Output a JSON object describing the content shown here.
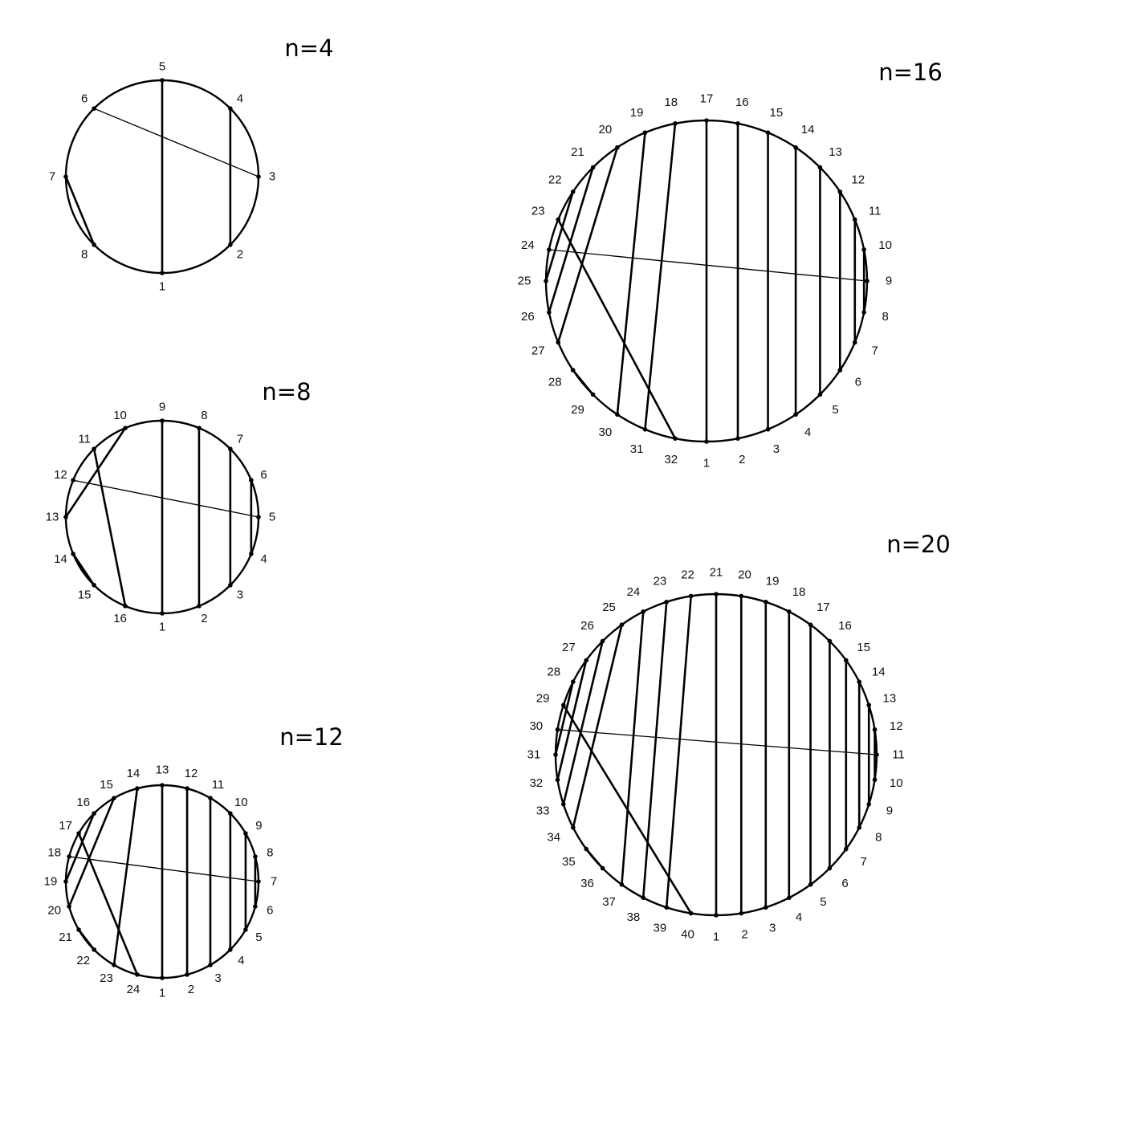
{
  "diagrams": [
    {
      "id": "n4",
      "title": "n=4",
      "point_count": 8,
      "chords": [
        [
          1,
          5,
          "thick"
        ],
        [
          2,
          4,
          "thick"
        ],
        [
          3,
          6,
          "thin"
        ],
        [
          7,
          8,
          "thick"
        ]
      ]
    },
    {
      "id": "n8",
      "title": "n=8",
      "point_count": 16,
      "chords": [
        [
          1,
          9,
          "thick"
        ],
        [
          2,
          8,
          "thick"
        ],
        [
          3,
          7,
          "thick"
        ],
        [
          4,
          6,
          "thick"
        ],
        [
          5,
          12,
          "thin"
        ],
        [
          10,
          13,
          "thick"
        ],
        [
          11,
          16,
          "thick"
        ],
        [
          14,
          15,
          "thick"
        ]
      ]
    },
    {
      "id": "n12",
      "title": "n=12",
      "point_count": 24,
      "chords": [
        [
          1,
          13,
          "thick"
        ],
        [
          2,
          12,
          "thick"
        ],
        [
          3,
          11,
          "thick"
        ],
        [
          4,
          10,
          "thick"
        ],
        [
          5,
          9,
          "thick"
        ],
        [
          6,
          8,
          "thick"
        ],
        [
          7,
          18,
          "thin"
        ],
        [
          14,
          23,
          "thick"
        ],
        [
          15,
          20,
          "thick"
        ],
        [
          16,
          19,
          "thick"
        ],
        [
          17,
          24,
          "thick"
        ],
        [
          21,
          22,
          "thick"
        ]
      ]
    },
    {
      "id": "n16",
      "title": "n=16",
      "point_count": 32,
      "chords": [
        [
          1,
          17,
          "thick"
        ],
        [
          2,
          16,
          "thick"
        ],
        [
          3,
          15,
          "thick"
        ],
        [
          4,
          14,
          "thick"
        ],
        [
          5,
          13,
          "thick"
        ],
        [
          6,
          12,
          "thick"
        ],
        [
          7,
          11,
          "thick"
        ],
        [
          8,
          10,
          "thick"
        ],
        [
          9,
          24,
          "thin"
        ],
        [
          18,
          31,
          "thick"
        ],
        [
          19,
          30,
          "thick"
        ],
        [
          20,
          27,
          "thick"
        ],
        [
          21,
          26,
          "thick"
        ],
        [
          22,
          25,
          "thick"
        ],
        [
          23,
          32,
          "thick"
        ],
        [
          28,
          29,
          "thick"
        ]
      ]
    },
    {
      "id": "n20",
      "title": "n=20",
      "point_count": 40,
      "chords": [
        [
          1,
          21,
          "thick"
        ],
        [
          2,
          20,
          "thick"
        ],
        [
          3,
          19,
          "thick"
        ],
        [
          4,
          18,
          "thick"
        ],
        [
          5,
          17,
          "thick"
        ],
        [
          6,
          16,
          "thick"
        ],
        [
          7,
          15,
          "thick"
        ],
        [
          8,
          14,
          "thick"
        ],
        [
          9,
          13,
          "thick"
        ],
        [
          10,
          12,
          "thick"
        ],
        [
          11,
          30,
          "thin"
        ],
        [
          22,
          39,
          "thick"
        ],
        [
          23,
          38,
          "thick"
        ],
        [
          24,
          37,
          "thick"
        ],
        [
          25,
          34,
          "thick"
        ],
        [
          26,
          33,
          "thick"
        ],
        [
          27,
          32,
          "thick"
        ],
        [
          28,
          31,
          "thick"
        ],
        [
          29,
          40,
          "thick"
        ],
        [
          35,
          36,
          "thick"
        ]
      ]
    }
  ]
}
